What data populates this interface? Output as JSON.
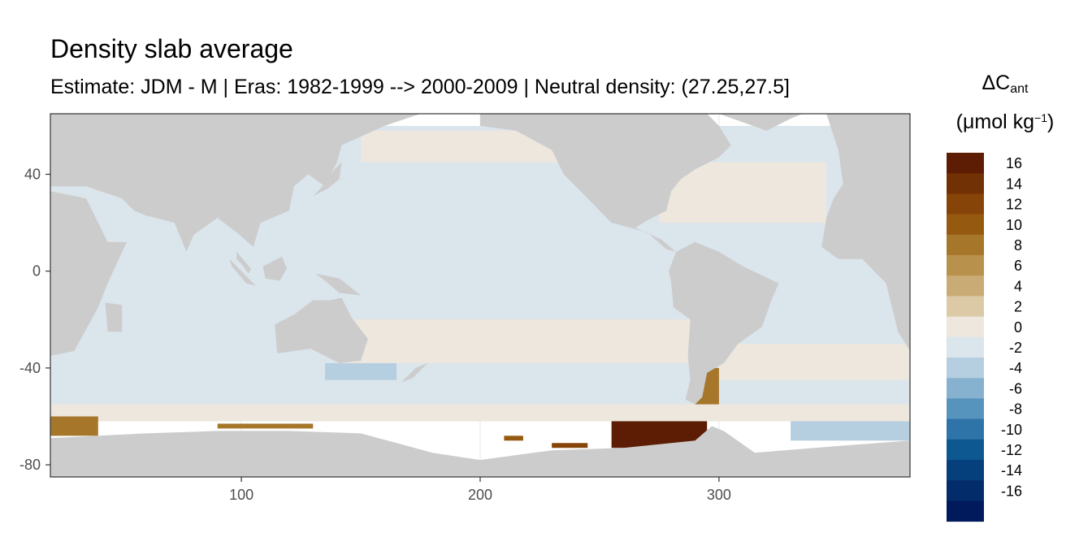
{
  "chart_data": {
    "type": "heatmap",
    "title": "Density slab average",
    "subtitle": "Estimate: JDM - M | Eras: 1982-1999 --> 2000-2009 | Neutral density: (27.25,27.5]",
    "legend_title_line1": "ΔC",
    "legend_title_sub": "ant",
    "legend_title_line2_pre": "(μmol kg",
    "legend_title_sup": "−1",
    "legend_title_line2_post": ")",
    "xlim": [
      20,
      380
    ],
    "ylim": [
      -85,
      65
    ],
    "x_ticks": [
      100,
      200,
      300
    ],
    "y_ticks": [
      40,
      0,
      -40,
      -80
    ],
    "grid": true,
    "legend_placement": "right",
    "legend_breaks": [
      16,
      14,
      12,
      10,
      8,
      6,
      4,
      2,
      0,
      -2,
      -4,
      -6,
      -8,
      -10,
      -12,
      -14,
      -16
    ],
    "legend_colors": [
      "#5d1c04",
      "#723005",
      "#874408",
      "#955a10",
      "#a6762a",
      "#b8914d",
      "#c9ab76",
      "#dcc9a6",
      "#ede7dd",
      "#dbe5ec",
      "#b6cfe0",
      "#86b2d0",
      "#5693bd",
      "#2f74a8",
      "#0e5892",
      "#053f7c",
      "#022c6a",
      "#011a5c"
    ],
    "land_color": "#cccccc",
    "regions": [
      {
        "name": "southern-ocean-rim-warm",
        "lon": [
          20,
          380
        ],
        "lat": [
          -62,
          -55
        ],
        "value": 1
      },
      {
        "name": "south-atlantic-warm-band",
        "lon": [
          300,
          380
        ],
        "lat": [
          -45,
          -30
        ],
        "value": 1
      },
      {
        "name": "south-pacific-warm-band",
        "lon": [
          140,
          290
        ],
        "lat": [
          -38,
          -20
        ],
        "value": 1
      },
      {
        "name": "north-pacific-warm-band",
        "lon": [
          150,
          240
        ],
        "lat": [
          45,
          58
        ],
        "value": 1
      },
      {
        "name": "north-atlantic-warm",
        "lon": [
          275,
          345
        ],
        "lat": [
          20,
          45
        ],
        "value": 1
      },
      {
        "name": "tasman-cool",
        "lon": [
          135,
          165
        ],
        "lat": [
          -45,
          -38
        ],
        "value": -3
      },
      {
        "name": "indian-ocean-cool-band",
        "lon": [
          40,
          110
        ],
        "lat": [
          -20,
          -10
        ],
        "value": -2
      },
      {
        "name": "weddell-cool",
        "lon": [
          330,
          380
        ],
        "lat": [
          -70,
          -62
        ],
        "value": -3
      },
      {
        "name": "indian-sector-antarctic-strong",
        "lon": [
          20,
          40
        ],
        "lat": [
          -68,
          -60
        ],
        "value": 9
      },
      {
        "name": "indian-sector-antarctic-shelf",
        "lon": [
          90,
          130
        ],
        "lat": [
          -65,
          -63
        ],
        "value": 8
      },
      {
        "name": "ross-sea-patch",
        "lon": [
          210,
          218
        ],
        "lat": [
          -70,
          -68
        ],
        "value": 10
      },
      {
        "name": "amundsen-sea-patch",
        "lon": [
          230,
          245
        ],
        "lat": [
          -73,
          -71
        ],
        "value": 12
      },
      {
        "name": "bellingshausen-sea-max",
        "lon": [
          255,
          295
        ],
        "lat": [
          -73,
          -62
        ],
        "value": 16
      },
      {
        "name": "patagonian-shelf-warm",
        "lon": [
          290,
          300
        ],
        "lat": [
          -55,
          -40
        ],
        "value": 9
      }
    ]
  }
}
